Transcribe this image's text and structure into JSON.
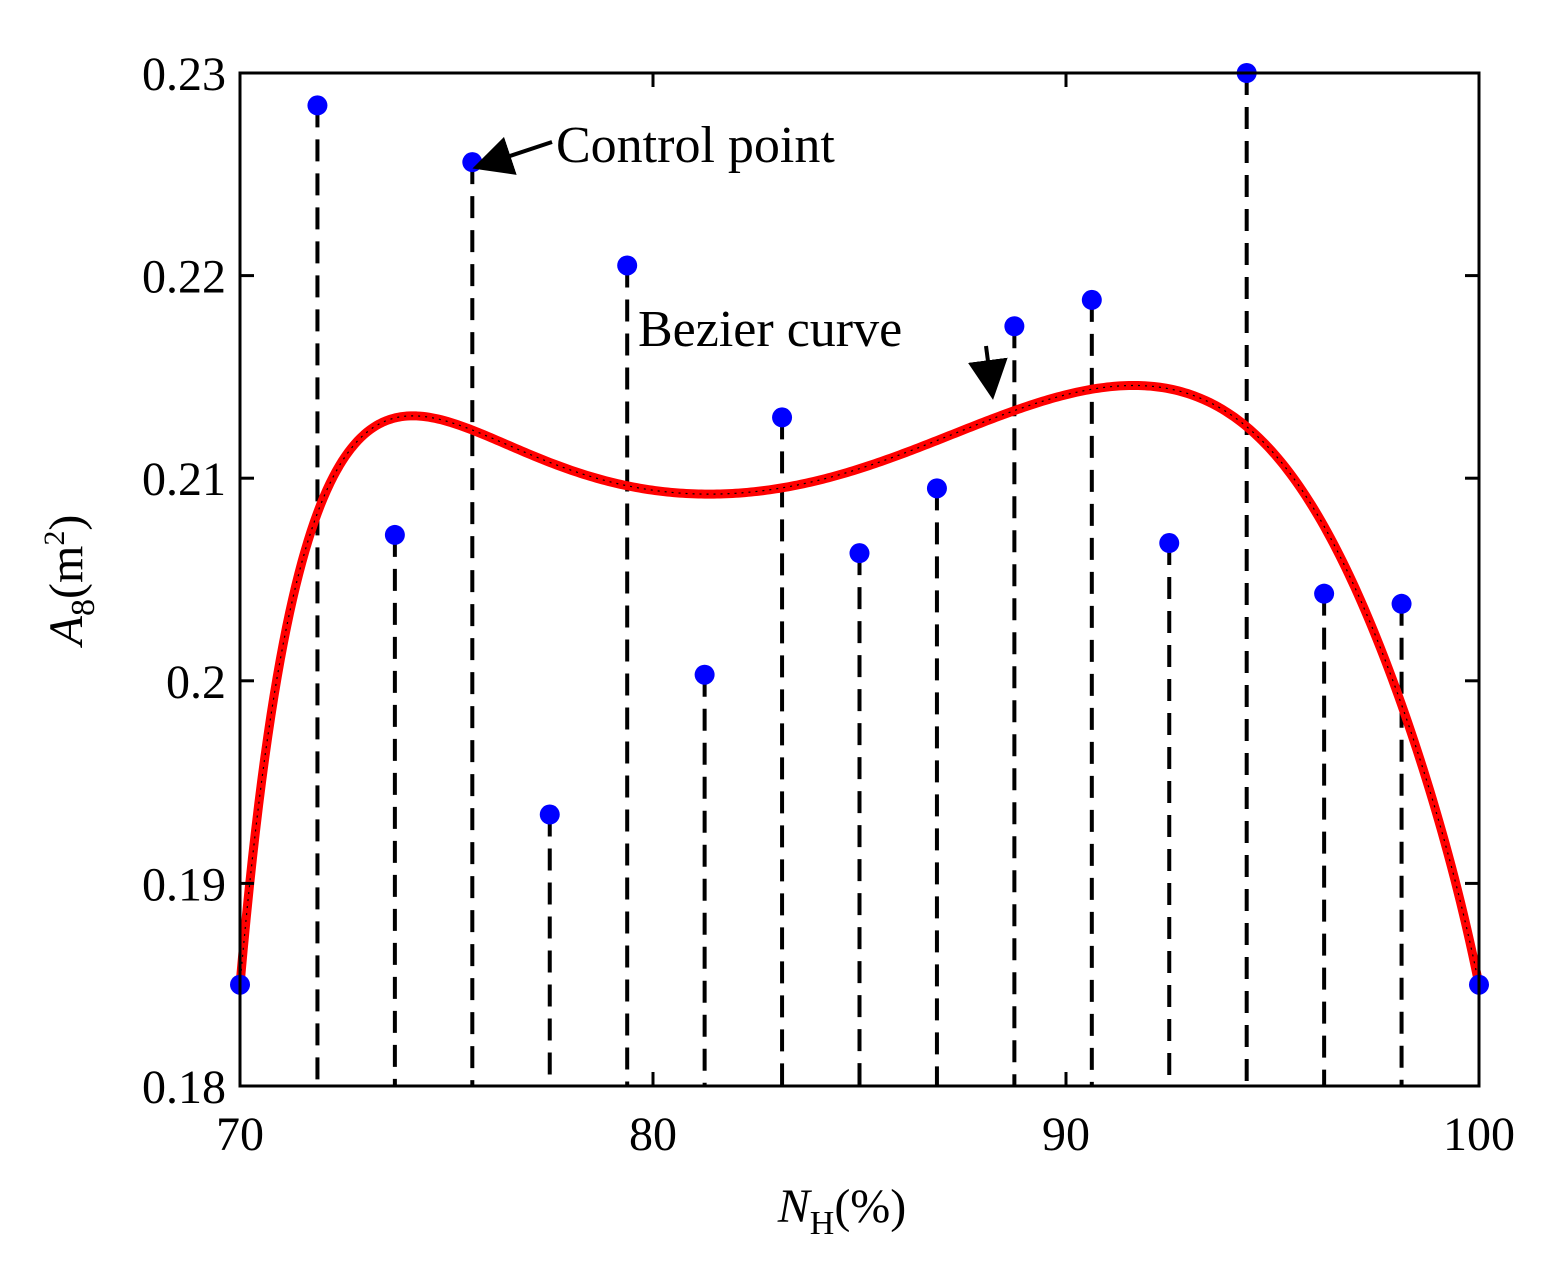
{
  "chart_data": {
    "type": "line",
    "xlabel_main": "N",
    "xlabel_sub": "H",
    "xlabel_unit": "(%)",
    "ylabel_main": "A",
    "ylabel_sub": "8",
    "ylabel_unit_open": "(m",
    "ylabel_unit_sup": "2",
    "ylabel_unit_close": ")",
    "xlim": [
      70,
      100
    ],
    "ylim": [
      0.18,
      0.23
    ],
    "x_ticks": [
      70,
      80,
      90,
      100
    ],
    "x_tick_labels": [
      "70",
      "80",
      "90",
      "100"
    ],
    "y_ticks": [
      0.18,
      0.19,
      0.2,
      0.21,
      0.22,
      0.23
    ],
    "y_tick_labels": [
      "0.18",
      "0.19",
      "0.2",
      "0.21",
      "0.22",
      "0.23"
    ],
    "grid": false,
    "control_points": {
      "x": [
        70,
        71.875,
        73.75,
        75.625,
        77.5,
        79.375,
        81.25,
        83.125,
        85,
        86.875,
        88.75,
        90.625,
        92.5,
        94.375,
        96.25,
        98.125,
        100
      ],
      "y": [
        0.185,
        0.2284,
        0.2072,
        0.2256,
        0.1934,
        0.2205,
        0.2003,
        0.213,
        0.2063,
        0.2095,
        0.2175,
        0.2188,
        0.2068,
        0.23,
        0.2043,
        0.2038,
        0.185
      ]
    },
    "series": [
      {
        "name": "Bezier curve",
        "color": "#ff0000",
        "style": "solid"
      }
    ],
    "markers_color": "#0000ff",
    "annotations": [
      {
        "text": "Control point",
        "points_to_index": 3
      },
      {
        "text": "Bezier curve",
        "points_to_x": 88.2
      }
    ]
  }
}
